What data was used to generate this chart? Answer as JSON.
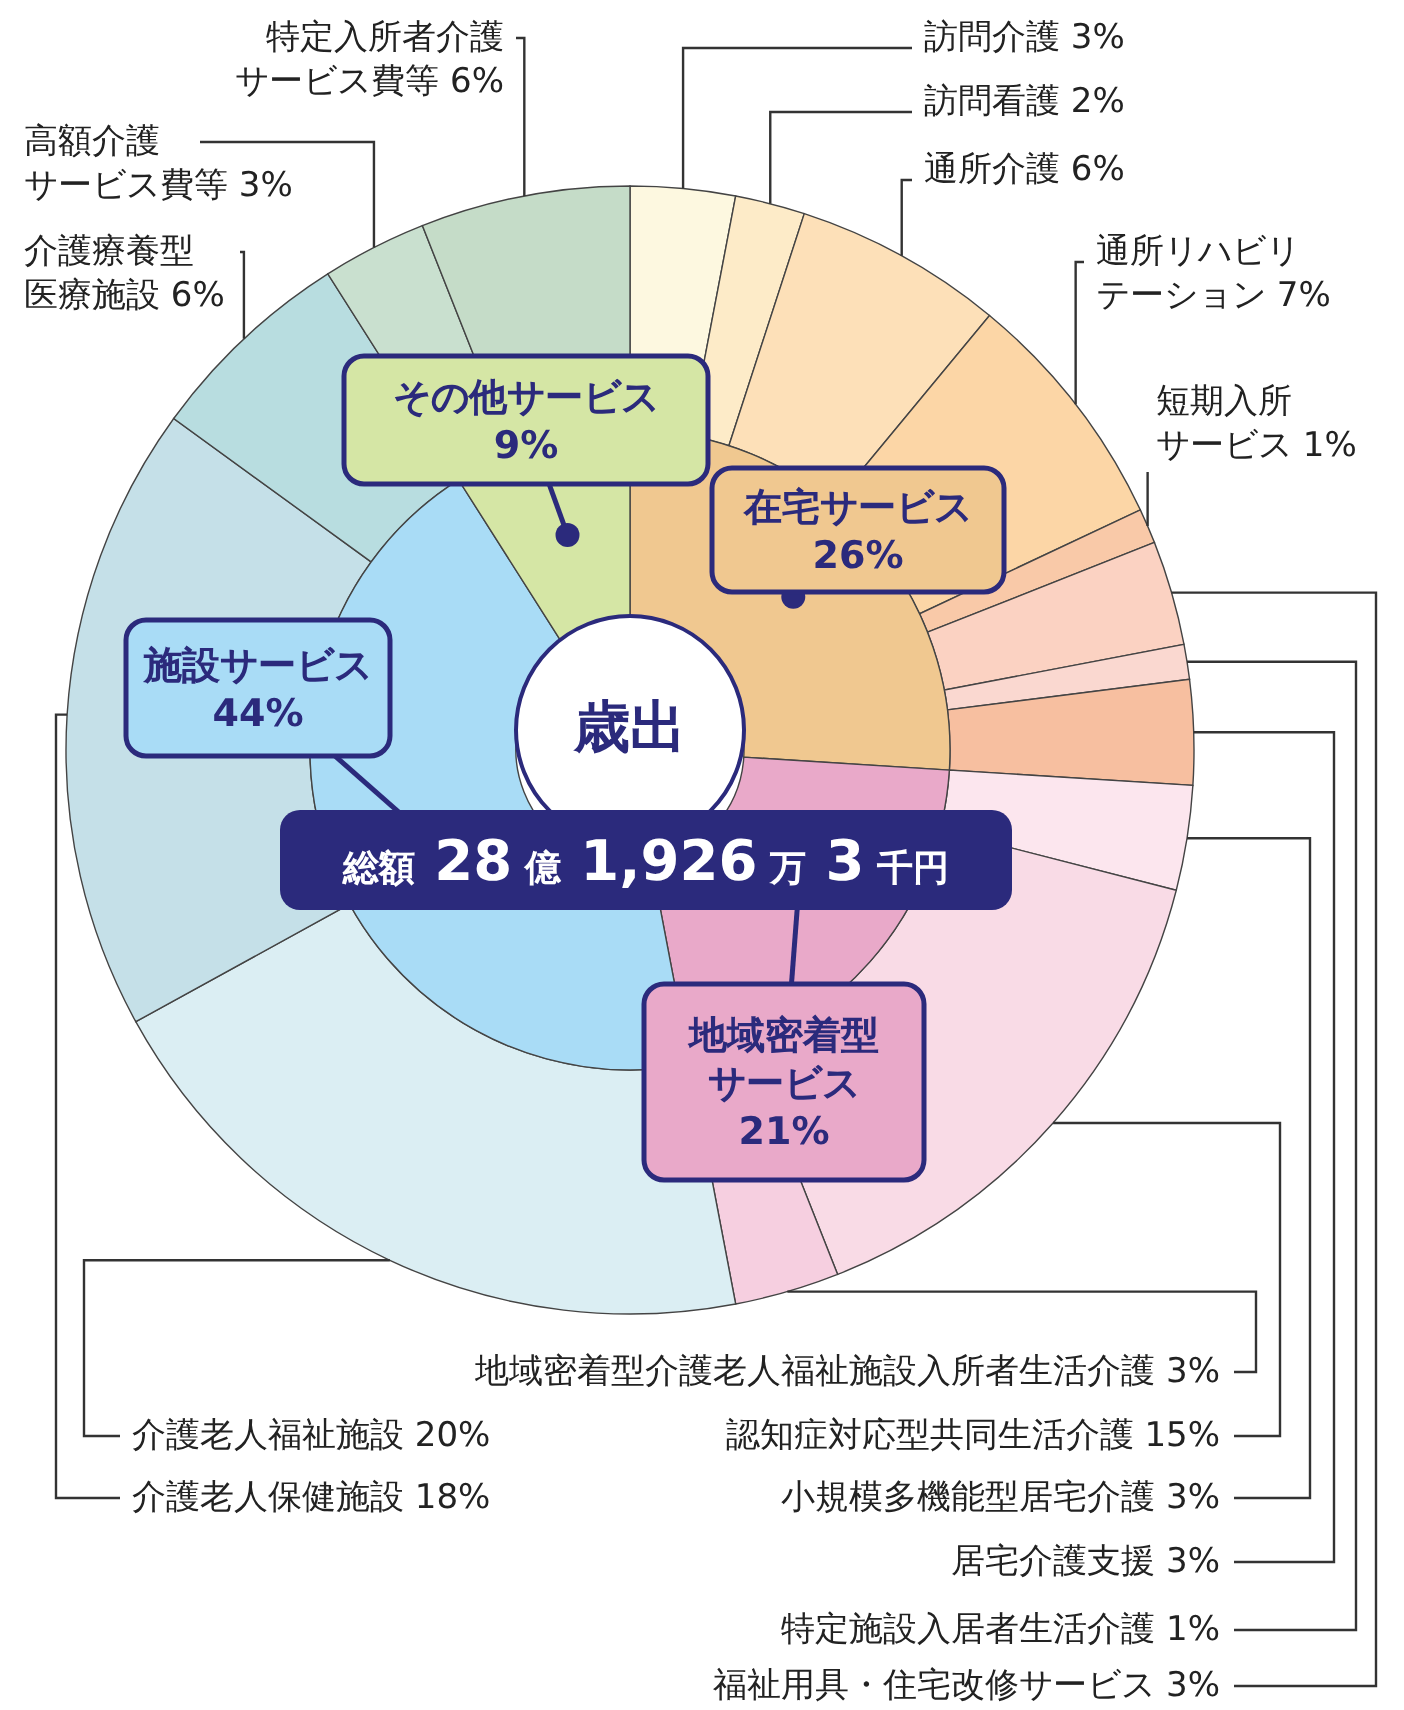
{
  "chart_data": [
    {
      "type": "donut",
      "annotations": [
        "歳出",
        "総額 28 億 1,926 万 3 千円"
      ],
      "categories": [
        "在宅サービス",
        "地域密着型サービス",
        "施設サービス",
        "その他サービス"
      ],
      "values": [
        26,
        21,
        44,
        9
      ],
      "value_labels": [
        "26%",
        "21%",
        "44%",
        "9%"
      ],
      "colors": [
        "#f0c890",
        "#e9a9c9",
        "#a9dcf6",
        "#d5e6a5"
      ]
    },
    {
      "type": "donut",
      "categories": [
        "訪問介護",
        "訪問看護",
        "通所介護",
        "通所リハビリテーション",
        "短期入所サービス",
        "福祉用具・住宅改修サービス",
        "特定施設入居者生活介護",
        "居宅介護支援",
        "小規模多機能型居宅介護",
        "認知症対応型共同生活介護",
        "地域密着型介護老人福祉施設入所者生活介護",
        "介護老人福祉施設",
        "介護老人保健施設",
        "介護療養型医療施設",
        "高額介護サービス費等",
        "特定入所者介護サービス費等"
      ],
      "values": [
        3,
        2,
        6,
        7,
        1,
        3,
        1,
        3,
        3,
        15,
        3,
        20,
        18,
        6,
        3,
        6
      ],
      "value_labels": [
        "3%",
        "2%",
        "6%",
        "7%",
        "1%",
        "3%",
        "1%",
        "3%",
        "3%",
        "15%",
        "3%",
        "20%",
        "18%",
        "6%",
        "3%",
        "6%"
      ],
      "colors": [
        "#fdf8e0",
        "#fdebc8",
        "#fde0b8",
        "#fcd6a6",
        "#f9c9a8",
        "#fbd2c2",
        "#fad8d0",
        "#f7bfa0",
        "#fce6ee",
        "#f9dbe6",
        "#f6cfe0",
        "#dbeef3",
        "#c5e0e8",
        "#b8dde0",
        "#c9e0cf",
        "#c5dcc8"
      ]
    }
  ]
}
